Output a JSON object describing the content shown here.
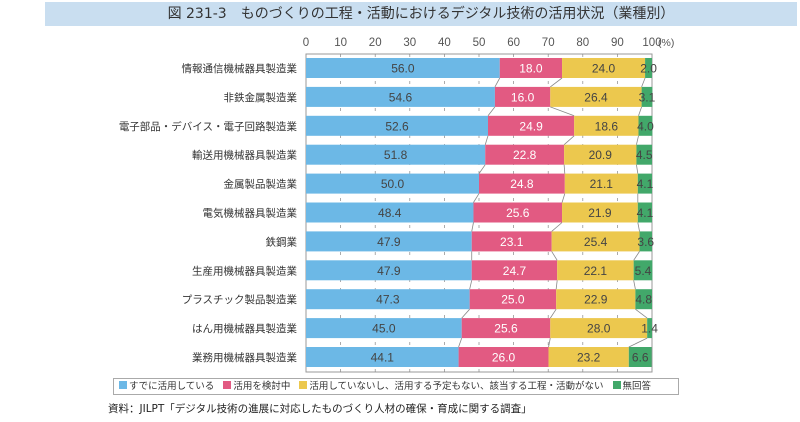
{
  "title": "図 231-3　ものづくりの工程・活動におけるデジタル技術の活用状況（業種別）",
  "source": "資料：JILPT「デジタル技術の進展に対応したものづくり人材の確保・育成に関する調査」",
  "colors": {
    "series": [
      "#6cb8e6",
      "#e25a82",
      "#ecc84e",
      "#42a86a"
    ],
    "title_bg": "#c9def0"
  },
  "chart_data": {
    "type": "bar",
    "orientation": "horizontal",
    "stacked": true,
    "title": "図 231-3　ものづくりの工程・活動におけるデジタル技術の活用状況（業種別）",
    "xlabel": "(%)",
    "ylabel": "",
    "xlim": [
      0,
      100
    ],
    "x_ticks": [
      "0",
      "10",
      "20",
      "30",
      "40",
      "50",
      "60",
      "70",
      "80",
      "90",
      "100"
    ],
    "x_unit_label": "(%)",
    "legend_position": "bottom",
    "grid": true,
    "categories": [
      "情報通信機械器具製造業",
      "非鉄金属製造業",
      "電子部品・デバイス・電子回路製造業",
      "輸送用機械器具製造業",
      "金属製品製造業",
      "電気機械器具製造業",
      "鉄鋼業",
      "生産用機械器具製造業",
      "プラスチック製品製造業",
      "はん用機械器具製造業",
      "業務用機械器具製造業"
    ],
    "series": [
      {
        "name": "すでに活用している",
        "values": [
          56.0,
          54.6,
          52.6,
          51.8,
          50.0,
          48.4,
          47.9,
          47.9,
          47.3,
          45.0,
          44.1
        ]
      },
      {
        "name": "活用を検討中",
        "values": [
          18.0,
          16.0,
          24.9,
          22.8,
          24.8,
          25.6,
          23.1,
          24.7,
          25.0,
          25.6,
          26.0
        ]
      },
      {
        "name": "活用していないし、活用する予定もない、該当する工程・活動がない",
        "values": [
          24.0,
          26.4,
          18.6,
          20.9,
          21.1,
          21.9,
          25.4,
          22.1,
          22.9,
          28.0,
          23.2
        ]
      },
      {
        "name": "無回答",
        "values": [
          2.0,
          3.1,
          4.0,
          4.5,
          4.1,
          4.1,
          3.6,
          5.4,
          4.8,
          1.4,
          6.6
        ]
      }
    ]
  }
}
